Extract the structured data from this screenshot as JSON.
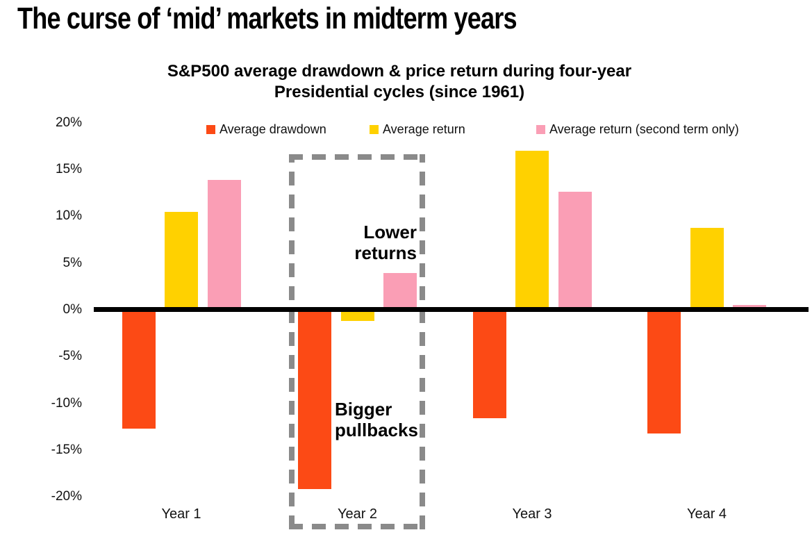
{
  "page_title": "The curse of ‘mid’ markets in midterm years",
  "chart_data": {
    "type": "bar",
    "title": "S&P500 average drawdown & price return during four-year\nPresidential cycles (since 1961)",
    "categories": [
      "Year 1",
      "Year 2",
      "Year 3",
      "Year 4"
    ],
    "series": [
      {
        "name": "Average drawdown",
        "color": "#FC4A15",
        "values": [
          -12.7,
          -19.2,
          -11.6,
          -13.2
        ]
      },
      {
        "name": "Average return",
        "color": "#FFD100",
        "values": [
          10.5,
          -1.2,
          17.0,
          8.8
        ]
      },
      {
        "name": "Average return (second term only)",
        "color": "#FA9EB5",
        "values": [
          13.9,
          3.9,
          12.6,
          0.5
        ]
      }
    ],
    "xlabel": "",
    "ylabel": "",
    "ylim": [
      -20,
      20
    ],
    "yticks": [
      "20%",
      "15%",
      "10%",
      "5%",
      "0%",
      "-5%",
      "-10%",
      "-15%",
      "-20%"
    ],
    "grid": false,
    "legend_position": "top",
    "zero_line_color": "#000000",
    "highlight_box": {
      "category": "Year 2",
      "color": "#8A8A8A"
    },
    "annotations": [
      {
        "text": "Lower\nreturns"
      },
      {
        "text": "Bigger\npullbacks"
      }
    ]
  }
}
